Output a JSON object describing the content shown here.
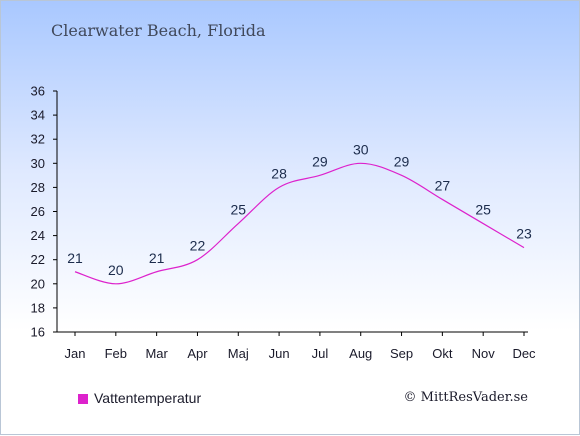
{
  "chart_data": {
    "type": "line",
    "title": "Clearwater Beach, Florida",
    "categories": [
      "Jan",
      "Feb",
      "Mar",
      "Apr",
      "Maj",
      "Jun",
      "Jul",
      "Aug",
      "Sep",
      "Okt",
      "Nov",
      "Dec"
    ],
    "series": [
      {
        "name": "Vattentemperatur",
        "values": [
          21,
          20,
          21,
          22,
          25,
          28,
          29,
          30,
          29,
          27,
          25,
          23
        ],
        "color": "#dd22cc"
      }
    ],
    "ylim": [
      16,
      36
    ],
    "yticks": [
      16,
      18,
      20,
      22,
      24,
      26,
      28,
      30,
      32,
      34,
      36
    ],
    "grid": false,
    "legend": "bottom-left"
  },
  "credit": "© MittResVader.se"
}
